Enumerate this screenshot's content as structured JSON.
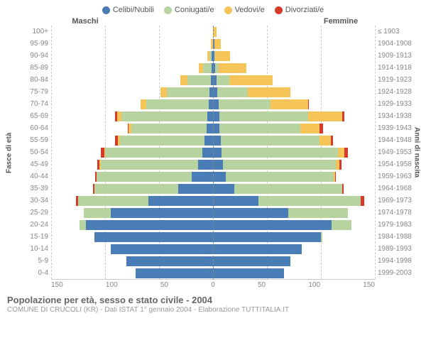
{
  "legend": [
    {
      "label": "Celibi/Nubili",
      "color": "#4a7db5"
    },
    {
      "label": "Coniugati/e",
      "color": "#b7d4a0"
    },
    {
      "label": "Vedovi/e",
      "color": "#f5c55a"
    },
    {
      "label": "Divorziati/e",
      "color": "#d63a2a"
    }
  ],
  "headers": {
    "left": "Maschi",
    "right": "Femmine"
  },
  "y_title_left": "Fasce di età",
  "y_title_right": "Anni di nascita",
  "colors": {
    "single": "#4a7db5",
    "married": "#b7d4a0",
    "widowed": "#f5c55a",
    "divorced": "#d63a2a",
    "grid": "#cccccc",
    "center": "#888888",
    "bg": "#ffffff"
  },
  "x_max": 150,
  "x_ticks": [
    150,
    100,
    50,
    0,
    50,
    100,
    150
  ],
  "age_bands": [
    "100+",
    "95-99",
    "90-94",
    "85-89",
    "80-84",
    "75-79",
    "70-74",
    "65-69",
    "60-64",
    "55-59",
    "50-54",
    "45-49",
    "40-44",
    "35-39",
    "30-34",
    "25-29",
    "20-24",
    "15-19",
    "10-14",
    "5-9",
    "0-4"
  ],
  "birth_years": [
    "≤ 1903",
    "1904-1908",
    "1909-1913",
    "1914-1918",
    "1919-1923",
    "1924-1928",
    "1929-1933",
    "1934-1938",
    "1939-1943",
    "1944-1948",
    "1949-1953",
    "1954-1958",
    "1959-1963",
    "1964-1968",
    "1969-1973",
    "1974-1978",
    "1979-1983",
    "1984-1988",
    "1989-1993",
    "1994-1998",
    "1999-2003"
  ],
  "rows": [
    {
      "m": {
        "s": 0,
        "c": 0,
        "w": 0,
        "d": 0
      },
      "f": {
        "s": 0,
        "c": 0,
        "w": 3,
        "d": 0
      }
    },
    {
      "m": {
        "s": 0,
        "c": 0,
        "w": 2,
        "d": 0
      },
      "f": {
        "s": 1,
        "c": 0,
        "w": 6,
        "d": 0
      }
    },
    {
      "m": {
        "s": 1,
        "c": 2,
        "w": 2,
        "d": 0
      },
      "f": {
        "s": 1,
        "c": 1,
        "w": 14,
        "d": 0
      }
    },
    {
      "m": {
        "s": 1,
        "c": 8,
        "w": 4,
        "d": 0
      },
      "f": {
        "s": 2,
        "c": 3,
        "w": 26,
        "d": 0
      }
    },
    {
      "m": {
        "s": 2,
        "c": 22,
        "w": 6,
        "d": 0
      },
      "f": {
        "s": 3,
        "c": 12,
        "w": 40,
        "d": 0
      }
    },
    {
      "m": {
        "s": 3,
        "c": 40,
        "w": 6,
        "d": 0
      },
      "f": {
        "s": 4,
        "c": 28,
        "w": 40,
        "d": 0
      }
    },
    {
      "m": {
        "s": 4,
        "c": 58,
        "w": 5,
        "d": 0
      },
      "f": {
        "s": 5,
        "c": 48,
        "w": 35,
        "d": 1
      }
    },
    {
      "m": {
        "s": 5,
        "c": 80,
        "w": 4,
        "d": 2
      },
      "f": {
        "s": 6,
        "c": 82,
        "w": 32,
        "d": 2
      }
    },
    {
      "m": {
        "s": 6,
        "c": 70,
        "w": 2,
        "d": 1
      },
      "f": {
        "s": 6,
        "c": 75,
        "w": 18,
        "d": 3
      }
    },
    {
      "m": {
        "s": 8,
        "c": 78,
        "w": 2,
        "d": 3
      },
      "f": {
        "s": 7,
        "c": 92,
        "w": 10,
        "d": 2
      }
    },
    {
      "m": {
        "s": 10,
        "c": 90,
        "w": 1,
        "d": 3
      },
      "f": {
        "s": 8,
        "c": 108,
        "w": 6,
        "d": 3
      }
    },
    {
      "m": {
        "s": 14,
        "c": 90,
        "w": 1,
        "d": 2
      },
      "f": {
        "s": 9,
        "c": 105,
        "w": 3,
        "d": 2
      }
    },
    {
      "m": {
        "s": 20,
        "c": 88,
        "w": 0,
        "d": 1
      },
      "f": {
        "s": 12,
        "c": 100,
        "w": 1,
        "d": 1
      }
    },
    {
      "m": {
        "s": 32,
        "c": 78,
        "w": 0,
        "d": 1
      },
      "f": {
        "s": 20,
        "c": 100,
        "w": 0,
        "d": 1
      }
    },
    {
      "m": {
        "s": 60,
        "c": 65,
        "w": 0,
        "d": 2
      },
      "f": {
        "s": 42,
        "c": 95,
        "w": 0,
        "d": 3
      }
    },
    {
      "m": {
        "s": 95,
        "c": 25,
        "w": 0,
        "d": 0
      },
      "f": {
        "s": 70,
        "c": 55,
        "w": 0,
        "d": 0
      }
    },
    {
      "m": {
        "s": 118,
        "c": 6,
        "w": 0,
        "d": 0
      },
      "f": {
        "s": 110,
        "c": 18,
        "w": 0,
        "d": 0
      }
    },
    {
      "m": {
        "s": 110,
        "c": 0,
        "w": 0,
        "d": 0
      },
      "f": {
        "s": 100,
        "c": 1,
        "w": 0,
        "d": 0
      }
    },
    {
      "m": {
        "s": 95,
        "c": 0,
        "w": 0,
        "d": 0
      },
      "f": {
        "s": 82,
        "c": 0,
        "w": 0,
        "d": 0
      }
    },
    {
      "m": {
        "s": 80,
        "c": 0,
        "w": 0,
        "d": 0
      },
      "f": {
        "s": 72,
        "c": 0,
        "w": 0,
        "d": 0
      }
    },
    {
      "m": {
        "s": 72,
        "c": 0,
        "w": 0,
        "d": 0
      },
      "f": {
        "s": 66,
        "c": 0,
        "w": 0,
        "d": 0
      }
    }
  ],
  "footer": {
    "title": "Popolazione per età, sesso e stato civile - 2004",
    "sub": "COMUNE DI CRUCOLI (KR) - Dati ISTAT 1° gennaio 2004 - Elaborazione TUTTITALIA.IT"
  }
}
